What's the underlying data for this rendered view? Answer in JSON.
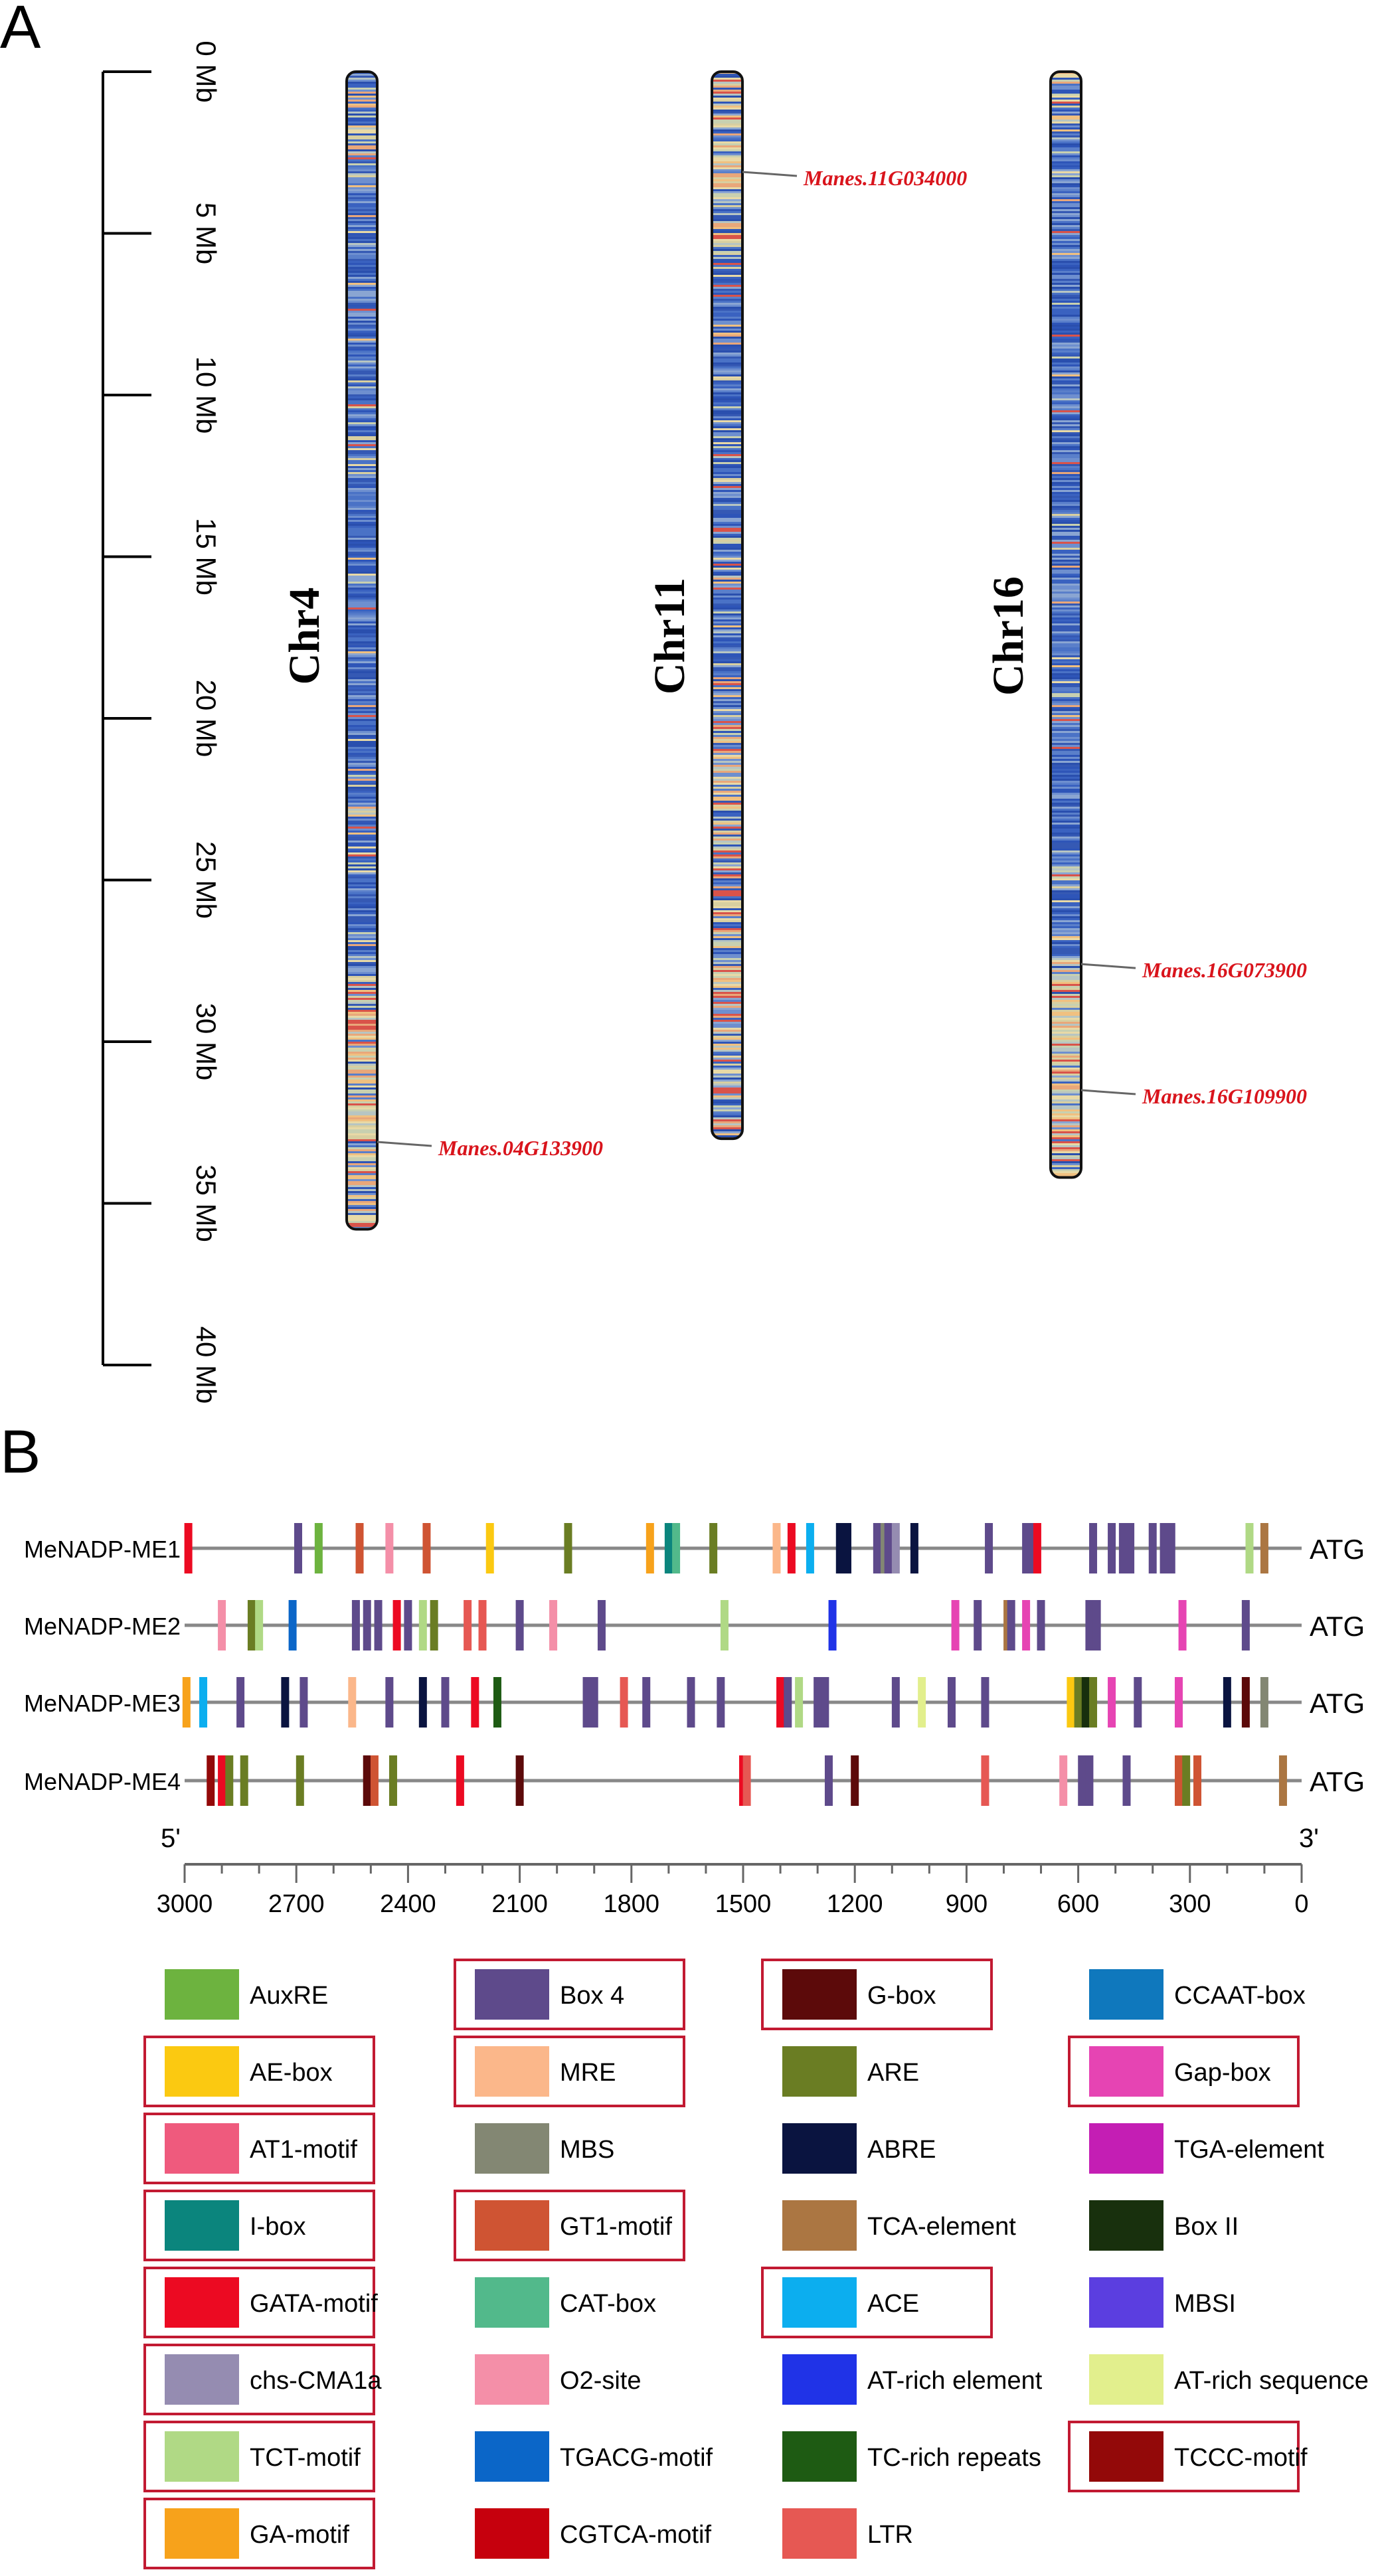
{
  "panel_a": {
    "label": "A",
    "scale_ticks": [
      "0 Mb",
      "5 Mb",
      "10 Mb",
      "15 Mb",
      "20 Mb",
      "25 Mb",
      "30 Mb",
      "35 Mb",
      "40 Mb"
    ],
    "scale_max_mb": 40,
    "chromosomes": [
      {
        "name": "Chr4",
        "length_mb": 35.8,
        "genes": [
          {
            "id": "Manes.04G133900",
            "pos_mb": 33.1
          }
        ]
      },
      {
        "name": "Chr11",
        "length_mb": 33.0,
        "genes": [
          {
            "id": "Manes.11G034000",
            "pos_mb": 3.1
          }
        ]
      },
      {
        "name": "Chr16",
        "length_mb": 34.2,
        "genes": [
          {
            "id": "Manes.16G073900",
            "pos_mb": 27.6
          },
          {
            "id": "Manes.16G109900",
            "pos_mb": 31.5
          }
        ]
      }
    ]
  },
  "panel_b": {
    "label": "B",
    "axis": {
      "left_label": "5'",
      "right_label": "3'",
      "ticks": [
        "3000",
        "2700",
        "2400",
        "2100",
        "1800",
        "1500",
        "1200",
        "900",
        "600",
        "300",
        "0"
      ],
      "min": 0,
      "max": 3000
    },
    "end_label": "ATG",
    "genes": [
      {
        "name": "MeNADP-ME1",
        "motifs": [
          [
            2990,
            "GATA-motif"
          ],
          [
            2695,
            "Box 4"
          ],
          [
            2640,
            "AuxRE"
          ],
          [
            2530,
            "GT1-motif"
          ],
          [
            2450,
            "O2-site"
          ],
          [
            2350,
            "GT1-motif"
          ],
          [
            2180,
            "AE-box"
          ],
          [
            1970,
            "ARE"
          ],
          [
            1750,
            "GA-motif"
          ],
          [
            1700,
            "I-box"
          ],
          [
            1680,
            "CAT-box"
          ],
          [
            1580,
            "ARE"
          ],
          [
            1410,
            "MRE"
          ],
          [
            1370,
            "GATA-motif"
          ],
          [
            1320,
            "ACE"
          ],
          [
            1240,
            "ABRE"
          ],
          [
            1220,
            "ABRE"
          ],
          [
            1140,
            "Box 4"
          ],
          [
            1120,
            "MBS"
          ],
          [
            1110,
            "Box 4"
          ],
          [
            1090,
            "chs-CMA1a"
          ],
          [
            1040,
            "ABRE"
          ],
          [
            840,
            "Box 4"
          ],
          [
            740,
            "Box 4"
          ],
          [
            720,
            "Box 4"
          ],
          [
            710,
            "GATA-motif"
          ],
          [
            560,
            "Box 4"
          ],
          [
            510,
            "Box 4"
          ],
          [
            480,
            "Box 4"
          ],
          [
            460,
            "Box 4"
          ],
          [
            400,
            "Box 4"
          ],
          [
            370,
            "Box 4"
          ],
          [
            350,
            "Box 4"
          ],
          [
            140,
            "TCT-motif"
          ],
          [
            100,
            "TCA-element"
          ]
        ]
      },
      {
        "name": "MeNADP-ME2",
        "motifs": [
          [
            2900,
            "O2-site"
          ],
          [
            2820,
            "ARE"
          ],
          [
            2800,
            "TCT-motif"
          ],
          [
            2710,
            "TGACG-motif"
          ],
          [
            2540,
            "Box 4"
          ],
          [
            2510,
            "Box 4"
          ],
          [
            2480,
            "Box 4"
          ],
          [
            2430,
            "GATA-motif"
          ],
          [
            2400,
            "Box 4"
          ],
          [
            2360,
            "TCT-motif"
          ],
          [
            2330,
            "ARE"
          ],
          [
            2240,
            "LTR"
          ],
          [
            2200,
            "LTR"
          ],
          [
            2100,
            "Box 4"
          ],
          [
            2010,
            "O2-site"
          ],
          [
            1880,
            "Box 4"
          ],
          [
            1550,
            "TCT-motif"
          ],
          [
            1260,
            "AT-rich element"
          ],
          [
            930,
            "Gap-box"
          ],
          [
            870,
            "Box 4"
          ],
          [
            790,
            "TCA-element"
          ],
          [
            780,
            "Box 4"
          ],
          [
            740,
            "Gap-box"
          ],
          [
            700,
            "Box 4"
          ],
          [
            570,
            "Box 4"
          ],
          [
            550,
            "Box 4"
          ],
          [
            320,
            "Gap-box"
          ],
          [
            150,
            "Box 4"
          ]
        ]
      },
      {
        "name": "MeNADP-ME3",
        "motifs": [
          [
            2995,
            "GA-motif"
          ],
          [
            2950,
            "ACE"
          ],
          [
            2850,
            "Box 4"
          ],
          [
            2730,
            "ABRE"
          ],
          [
            2680,
            "Box 4"
          ],
          [
            2550,
            "MRE"
          ],
          [
            2450,
            "Box 4"
          ],
          [
            2360,
            "ABRE"
          ],
          [
            2300,
            "Box 4"
          ],
          [
            2220,
            "GATA-motif"
          ],
          [
            2160,
            "TC-rich repeats"
          ],
          [
            1920,
            "Box 4"
          ],
          [
            1900,
            "Box 4"
          ],
          [
            1820,
            "LTR"
          ],
          [
            1760,
            "Box 4"
          ],
          [
            1640,
            "Box 4"
          ],
          [
            1560,
            "Box 4"
          ],
          [
            1400,
            "GATA-motif"
          ],
          [
            1380,
            "Box 4"
          ],
          [
            1350,
            "TCT-motif"
          ],
          [
            1300,
            "Box 4"
          ],
          [
            1280,
            "Box 4"
          ],
          [
            1090,
            "Box 4"
          ],
          [
            1020,
            "AT-rich sequence"
          ],
          [
            940,
            "Box 4"
          ],
          [
            850,
            "Box 4"
          ],
          [
            620,
            "AE-box"
          ],
          [
            600,
            "ARE"
          ],
          [
            580,
            "Box II"
          ],
          [
            560,
            "ARE"
          ],
          [
            510,
            "Gap-box"
          ],
          [
            440,
            "Box 4"
          ],
          [
            330,
            "Gap-box"
          ],
          [
            200,
            "ABRE"
          ],
          [
            150,
            "G-box"
          ],
          [
            100,
            "MBS"
          ]
        ]
      },
      {
        "name": "MeNADP-ME4",
        "motifs": [
          [
            2930,
            "TCCC-motif"
          ],
          [
            2900,
            "GATA-motif"
          ],
          [
            2880,
            "ARE"
          ],
          [
            2840,
            "ARE"
          ],
          [
            2690,
            "ARE"
          ],
          [
            2510,
            "G-box"
          ],
          [
            2490,
            "GT1-motif"
          ],
          [
            2440,
            "ARE"
          ],
          [
            2260,
            "GATA-motif"
          ],
          [
            2100,
            "G-box"
          ],
          [
            1500,
            "GATA-motif"
          ],
          [
            1490,
            "LTR"
          ],
          [
            1270,
            "Box 4"
          ],
          [
            1200,
            "G-box"
          ],
          [
            850,
            "LTR"
          ],
          [
            640,
            "O2-site"
          ],
          [
            590,
            "Box 4"
          ],
          [
            570,
            "Box 4"
          ],
          [
            470,
            "Box 4"
          ],
          [
            330,
            "GT1-motif"
          ],
          [
            310,
            "ARE"
          ],
          [
            280,
            "GT1-motif"
          ],
          [
            50,
            "TCA-element"
          ]
        ]
      }
    ]
  },
  "legend": [
    {
      "label": "AuxRE",
      "color": "#6db33f",
      "boxed": false
    },
    {
      "label": "Box 4",
      "color": "#5e4a8b",
      "boxed": true
    },
    {
      "label": "G-box",
      "color": "#5c0a0a",
      "boxed": true
    },
    {
      "label": "CCAAT-box",
      "color": "#0f78bd",
      "boxed": false
    },
    {
      "label": "AE-box",
      "color": "#fbc911",
      "boxed": true
    },
    {
      "label": "MRE",
      "color": "#fbb78a",
      "boxed": true
    },
    {
      "label": "ARE",
      "color": "#6a7d23",
      "boxed": false
    },
    {
      "label": "Gap-box",
      "color": "#e644b3",
      "boxed": true
    },
    {
      "label": "AT1-motif",
      "color": "#ef5a7d",
      "boxed": true
    },
    {
      "label": "MBS",
      "color": "#838773",
      "boxed": false
    },
    {
      "label": "ABRE",
      "color": "#0a1440",
      "boxed": false
    },
    {
      "label": "TGA-element",
      "color": "#c41eb4",
      "boxed": false
    },
    {
      "label": "I-box",
      "color": "#0b857d",
      "boxed": true
    },
    {
      "label": "GT1-motif",
      "color": "#cf5433",
      "boxed": true
    },
    {
      "label": "TCA-element",
      "color": "#ab7642",
      "boxed": false
    },
    {
      "label": "Box II",
      "color": "#18300d",
      "boxed": false
    },
    {
      "label": "GATA-motif",
      "color": "#ec0a22",
      "boxed": true
    },
    {
      "label": "CAT-box",
      "color": "#52b98b",
      "boxed": false
    },
    {
      "label": "ACE",
      "color": "#0caeef",
      "boxed": true
    },
    {
      "label": "MBSI",
      "color": "#5b3ee0",
      "boxed": false
    },
    {
      "label": "chs-CMA1a",
      "color": "#958cb1",
      "boxed": true
    },
    {
      "label": "O2-site",
      "color": "#f48fa8",
      "boxed": false
    },
    {
      "label": "AT-rich element",
      "color": "#2033e7",
      "boxed": false
    },
    {
      "label": "AT-rich sequence",
      "color": "#e2ef8d",
      "boxed": false
    },
    {
      "label": "TCT-motif",
      "color": "#b0d985",
      "boxed": true
    },
    {
      "label": "TGACG-motif",
      "color": "#0b66c8",
      "boxed": false
    },
    {
      "label": "TC-rich repeats",
      "color": "#1e5b13",
      "boxed": false
    },
    {
      "label": "TCCC-motif",
      "color": "#930909",
      "boxed": true
    },
    {
      "label": "GA-motif",
      "color": "#f7a21b",
      "boxed": true
    },
    {
      "label": "CGTCA-motif",
      "color": "#c6000d",
      "boxed": false
    },
    {
      "label": "LTR",
      "color": "#e65853",
      "boxed": false
    }
  ],
  "colors": {
    "highlight_box": "#c21a32",
    "gene_label": "#d9141c",
    "axis": "#000000",
    "gene_line": "#888888"
  }
}
